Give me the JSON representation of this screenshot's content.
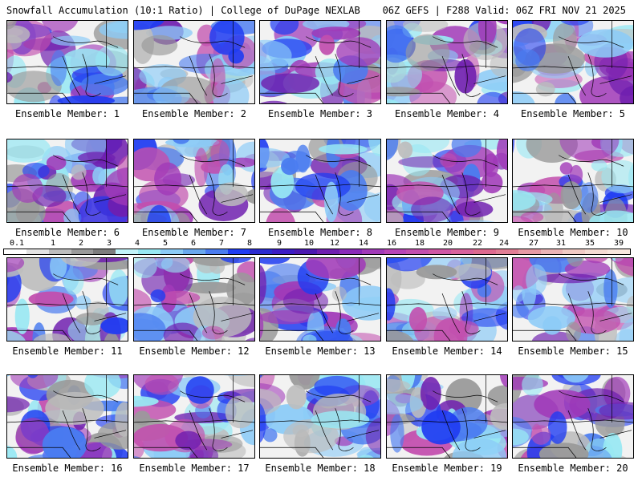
{
  "header": {
    "title": "Snowfall Accumulation (10:1 Ratio) | College of DuPage NEXLAB",
    "run_info": "06Z GEFS | F288 Valid: 06Z FRI NOV 21 2025"
  },
  "colors": {
    "background": "#ffffff",
    "land": "#f2f2f2",
    "border_lines": "#000000"
  },
  "legend": {
    "labels": [
      "0.1",
      "1",
      "2",
      "3",
      "4",
      "5",
      "6",
      "7",
      "8",
      "9",
      "10",
      "12",
      "14",
      "16",
      "18",
      "20",
      "22",
      "24",
      "27",
      "31",
      "35",
      "39"
    ],
    "colors": [
      "#ffffff",
      "#e3e3e3",
      "#bdbdbd",
      "#9a9a9a",
      "#7d7d7d",
      "#c2f4f9",
      "#98e8f3",
      "#8ccbf7",
      "#6aa8ee",
      "#4a7cf0",
      "#1f3cf2",
      "#2b2bd0",
      "#3b1cc4",
      "#4b18b0",
      "#6f1eaf",
      "#8a2bb8",
      "#a13ab8",
      "#b845b6",
      "#c24fae",
      "#cf57a4",
      "#d8629c",
      "#dd6a8f",
      "#e17e95",
      "#e69aa4",
      "#ecb4b6",
      "#f1cac4",
      "#f5dbd2",
      "#f8e6dd"
    ]
  },
  "members": [
    {
      "caption": "Ensemble Member: 1"
    },
    {
      "caption": "Ensemble Member: 2"
    },
    {
      "caption": "Ensemble Member: 3"
    },
    {
      "caption": "Ensemble Member: 4"
    },
    {
      "caption": "Ensemble Member: 5"
    },
    {
      "caption": "Ensemble Member: 6"
    },
    {
      "caption": "Ensemble Member: 7"
    },
    {
      "caption": "Ensemble Member: 8"
    },
    {
      "caption": "Ensemble Member: 9"
    },
    {
      "caption": "Ensemble Member: 10"
    },
    {
      "caption": "Ensemble Member: 11"
    },
    {
      "caption": "Ensemble Member: 12"
    },
    {
      "caption": "Ensemble Member: 13"
    },
    {
      "caption": "Ensemble Member: 14"
    },
    {
      "caption": "Ensemble Member: 15"
    },
    {
      "caption": "Ensemble Member: 16"
    },
    {
      "caption": "Ensemble Member: 17"
    },
    {
      "caption": "Ensemble Member: 18"
    },
    {
      "caption": "Ensemble Member: 19"
    },
    {
      "caption": "Ensemble Member: 20"
    }
  ]
}
